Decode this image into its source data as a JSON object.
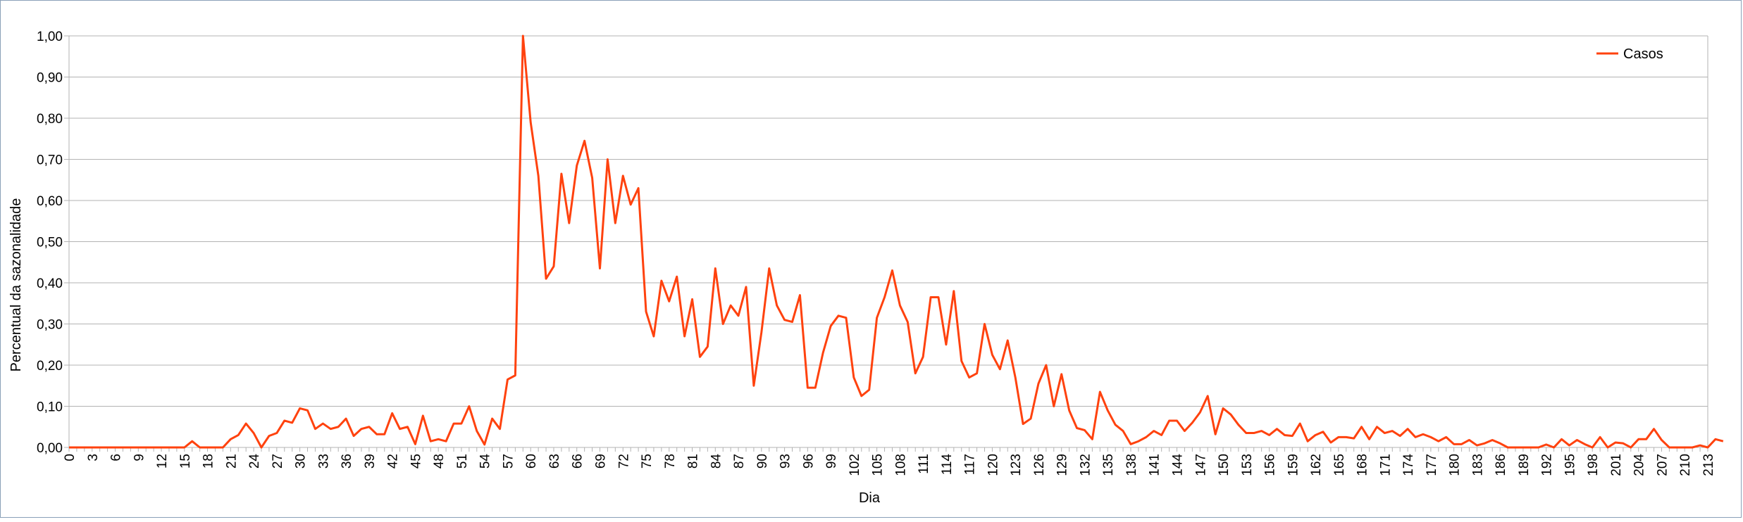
{
  "chart_data": {
    "type": "line",
    "xlabel": "Dia",
    "ylabel": "Percentual da sazonalidade",
    "ylim": [
      0,
      1
    ],
    "yticks": [
      "0,00",
      "0,10",
      "0,20",
      "0,30",
      "0,40",
      "0,50",
      "0,60",
      "0,70",
      "0,80",
      "0,90",
      "1,00"
    ],
    "xlim": [
      0,
      213
    ],
    "xtick_step": 3,
    "grid": "horizontal",
    "legend_position": "top-right",
    "colors": {
      "series": "#ff420e",
      "grid": "#b3b3b3",
      "axis": "#b3b3b3"
    },
    "series": [
      {
        "name": "Casos",
        "x_start": 0,
        "values": [
          0,
          0,
          0,
          0,
          0,
          0,
          0,
          0,
          0,
          0,
          0,
          0,
          0,
          0,
          0,
          0,
          0.015,
          0,
          0,
          0,
          0,
          0.02,
          0.03,
          0.058,
          0.035,
          0,
          0.028,
          0.035,
          0.065,
          0.06,
          0.095,
          0.09,
          0.045,
          0.058,
          0.045,
          0.05,
          0.07,
          0.028,
          0.045,
          0.05,
          0.032,
          0.032,
          0.083,
          0.045,
          0.05,
          0.008,
          0.077,
          0.015,
          0.02,
          0.015,
          0.058,
          0.058,
          0.1,
          0.04,
          0.007,
          0.07,
          0.045,
          0.165,
          0.175,
          1.0,
          0.79,
          0.66,
          0.41,
          0.44,
          0.665,
          0.545,
          0.685,
          0.745,
          0.655,
          0.435,
          0.7,
          0.545,
          0.66,
          0.59,
          0.63,
          0.33,
          0.27,
          0.405,
          0.355,
          0.415,
          0.27,
          0.36,
          0.22,
          0.245,
          0.435,
          0.3,
          0.345,
          0.32,
          0.39,
          0.15,
          0.28,
          0.435,
          0.345,
          0.31,
          0.305,
          0.37,
          0.145,
          0.145,
          0.23,
          0.295,
          0.32,
          0.315,
          0.17,
          0.125,
          0.14,
          0.315,
          0.365,
          0.43,
          0.345,
          0.305,
          0.18,
          0.22,
          0.365,
          0.365,
          0.25,
          0.38,
          0.21,
          0.17,
          0.18,
          0.3,
          0.225,
          0.19,
          0.26,
          0.17,
          0.057,
          0.07,
          0.155,
          0.2,
          0.1,
          0.178,
          0.09,
          0.047,
          0.042,
          0.02,
          0.135,
          0.09,
          0.055,
          0.04,
          0.008,
          0.015,
          0.025,
          0.04,
          0.03,
          0.065,
          0.065,
          0.04,
          0.06,
          0.085,
          0.125,
          0.032,
          0.095,
          0.08,
          0.055,
          0.035,
          0.035,
          0.04,
          0.03,
          0.045,
          0.03,
          0.028,
          0.058,
          0.015,
          0.03,
          0.038,
          0.012,
          0.025,
          0.025,
          0.022,
          0.05,
          0.02,
          0.05,
          0.035,
          0.04,
          0.028,
          0.045,
          0.025,
          0.032,
          0.025,
          0.015,
          0.025,
          0.008,
          0.008,
          0.018,
          0.005,
          0.01,
          0.018,
          0.01,
          0,
          0,
          0,
          0,
          0,
          0.007,
          0,
          0.02,
          0.005,
          0.018,
          0.008,
          0,
          0.025,
          0,
          0.012,
          0.01,
          0,
          0.02,
          0.02,
          0.045,
          0.018,
          0,
          0,
          0,
          0,
          0.005,
          0,
          0.02,
          0.015
        ]
      }
    ]
  }
}
